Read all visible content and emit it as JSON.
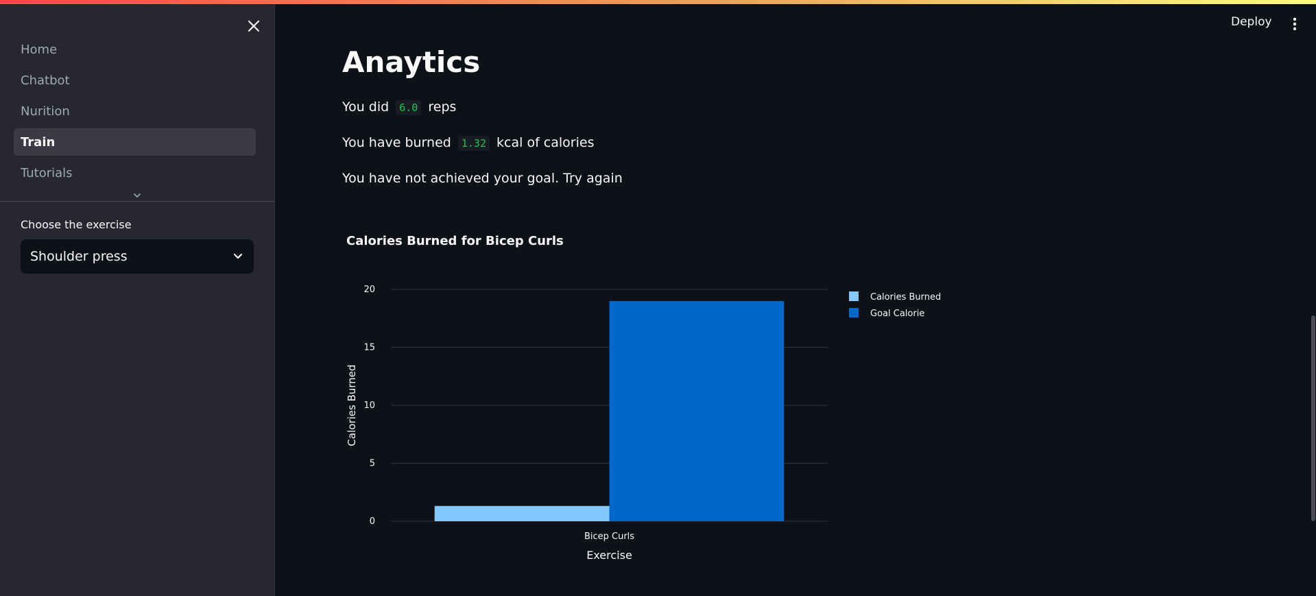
{
  "sidebar": {
    "nav_items": [
      {
        "label": "Home"
      },
      {
        "label": "Chatbot"
      },
      {
        "label": "Nurition"
      },
      {
        "label": "Train"
      },
      {
        "label": "Tutorials"
      }
    ],
    "active_index": 3,
    "select_label": "Choose the exercise",
    "select_value": "Shoulder press"
  },
  "header": {
    "deploy_label": "Deploy"
  },
  "main": {
    "title": "Anaytics",
    "reps_prefix": "You did",
    "reps_value": "6.0",
    "reps_suffix": "reps",
    "burned_prefix": "You have burned",
    "burned_value": "1.32",
    "burned_suffix": "kcal of calories",
    "goal_message": "You have not achieved your goal. Try again"
  },
  "colors": {
    "background": "#0e1117",
    "sidebar": "#262730",
    "accent_green": "#21c354",
    "series_burned": "#83c9ff",
    "series_goal": "#0068c9"
  },
  "chart_data": {
    "type": "bar",
    "title": "Calories Burned for Bicep Curls",
    "xlabel": "Exercise",
    "ylabel": "Calories Burned",
    "categories": [
      "Bicep Curls"
    ],
    "series": [
      {
        "name": "Calories Burned",
        "values": [
          1.32
        ],
        "color": "#83c9ff"
      },
      {
        "name": "Goal Calorie",
        "values": [
          19
        ],
        "color": "#0068c9"
      }
    ],
    "ylim": [
      0,
      20
    ],
    "yticks": [
      0,
      5,
      10,
      15,
      20
    ],
    "grid": true,
    "legend": "top-right"
  }
}
